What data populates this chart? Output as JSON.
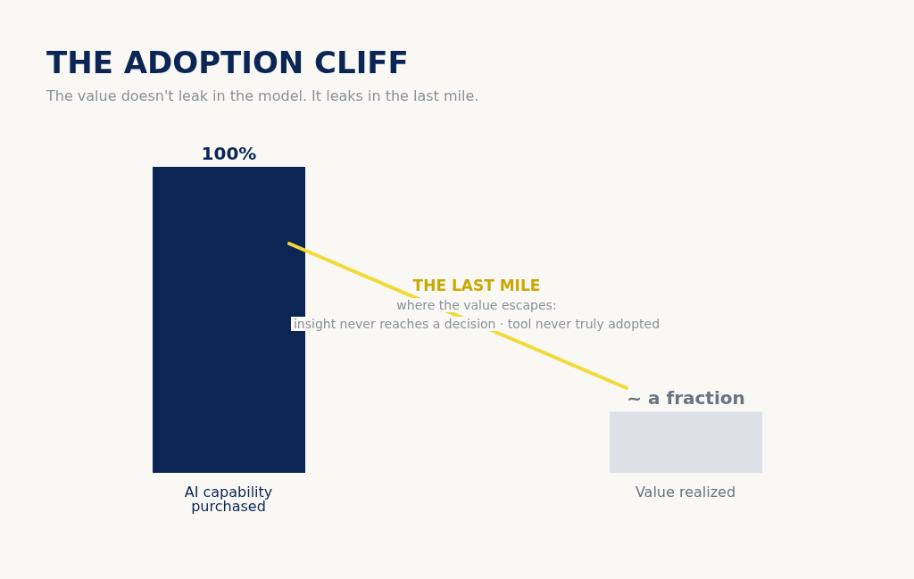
{
  "chart_data": {
    "type": "bar",
    "title": "THE ADOPTION CLIFF",
    "subtitle": "The value doesn't leak in the model. It leaks in the last mile.",
    "categories": [
      "AI capability purchased",
      "Value realized"
    ],
    "values": [
      100,
      20
    ],
    "colors": [
      "#0b2655",
      "#dde0e7"
    ],
    "tick_labels": "x",
    "value_labels": [
      "100%",
      "~ a fraction"
    ],
    "annotations": [
      "THE LAST MILE",
      "where the value escapes:",
      "insight never reaches a decision · tool never truly adopted"
    ],
    "grid": false,
    "legend": false
  }
}
